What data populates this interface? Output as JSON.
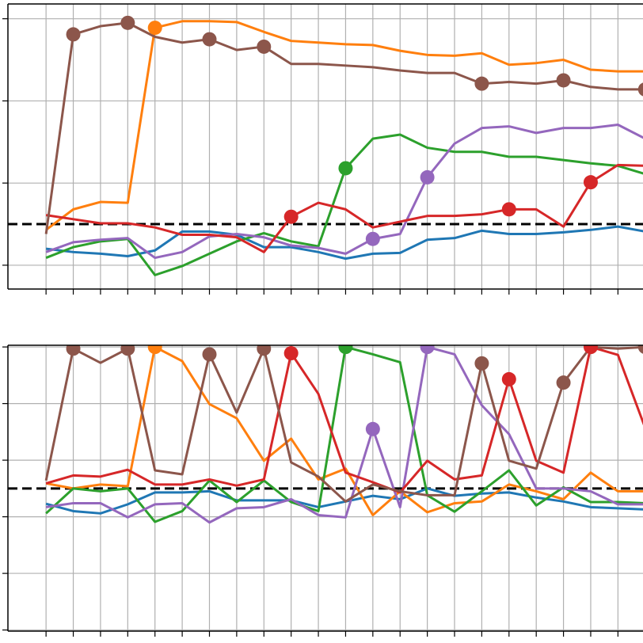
{
  "chart_data": [
    {
      "type": "line",
      "xlim": [
        -1.4,
        21.92
      ],
      "ylim": [
        -0.29,
        3.18
      ],
      "xticks": [
        0,
        1,
        2,
        3,
        4,
        5,
        6,
        7,
        8,
        9,
        10,
        11,
        12,
        13,
        14,
        15,
        16,
        17,
        18,
        19,
        20,
        21,
        22
      ],
      "yticks": [
        0,
        1,
        2,
        3
      ],
      "grid": true,
      "hline": 0.5,
      "x": [
        0,
        1,
        2,
        3,
        4,
        5,
        6,
        7,
        8,
        9,
        10,
        11,
        12,
        13,
        14,
        15,
        16,
        17,
        18,
        19,
        20,
        21,
        22
      ],
      "series": [
        {
          "color": "#1f77b4",
          "values": [
            0.2,
            0.16,
            0.14,
            0.11,
            0.18,
            0.41,
            0.41,
            0.37,
            0.22,
            0.22,
            0.16,
            0.08,
            0.14,
            0.15,
            0.31,
            0.33,
            0.42,
            0.38,
            0.38,
            0.4,
            0.43,
            0.47,
            0.41
          ],
          "markers": []
        },
        {
          "color": "#ff7f0e",
          "values": [
            0.43,
            0.68,
            0.77,
            0.76,
            2.89,
            2.97,
            2.97,
            2.96,
            2.84,
            2.73,
            2.71,
            2.69,
            2.68,
            2.61,
            2.56,
            2.55,
            2.58,
            2.44,
            2.46,
            2.5,
            2.38,
            2.36,
            2.36
          ],
          "markers": [
            4
          ]
        },
        {
          "color": "#2ca02c",
          "values": [
            0.09,
            0.22,
            0.29,
            0.32,
            -0.12,
            -0.01,
            0.14,
            0.29,
            0.39,
            0.29,
            0.23,
            1.18,
            1.54,
            1.59,
            1.43,
            1.38,
            1.38,
            1.32,
            1.32,
            1.28,
            1.24,
            1.21,
            1.11
          ],
          "markers": [
            11
          ]
        },
        {
          "color": "#9467bd",
          "values": [
            0.16,
            0.28,
            0.31,
            0.33,
            0.09,
            0.16,
            0.35,
            0.38,
            0.34,
            0.24,
            0.21,
            0.14,
            0.32,
            0.38,
            1.07,
            1.48,
            1.67,
            1.69,
            1.61,
            1.67,
            1.67,
            1.71,
            1.54
          ],
          "markers": [
            12,
            14
          ]
        },
        {
          "color": "#d62728",
          "values": [
            0.61,
            0.56,
            0.51,
            0.51,
            0.46,
            0.37,
            0.37,
            0.34,
            0.16,
            0.59,
            0.76,
            0.68,
            0.46,
            0.53,
            0.6,
            0.6,
            0.62,
            0.68,
            0.68,
            0.47,
            1.01,
            1.22,
            1.21
          ],
          "markers": [
            9,
            17,
            20
          ]
        },
        {
          "color": "#8c564b",
          "values": [
            0.38,
            2.81,
            2.91,
            2.95,
            2.78,
            2.71,
            2.75,
            2.62,
            2.66,
            2.45,
            2.45,
            2.43,
            2.41,
            2.37,
            2.34,
            2.34,
            2.21,
            2.23,
            2.21,
            2.25,
            2.17,
            2.14,
            2.14
          ],
          "markers": [
            1,
            3,
            6,
            8,
            16,
            19,
            22
          ]
        }
      ]
    },
    {
      "type": "line",
      "xlim": [
        -1.4,
        21.92
      ],
      "ylim": [
        -1.02,
        4.03
      ],
      "xticks": [
        0,
        1,
        2,
        3,
        4,
        5,
        6,
        7,
        8,
        9,
        10,
        11,
        12,
        13,
        14,
        15,
        16,
        17,
        18,
        19,
        20,
        21,
        22
      ],
      "yticks": [
        -1,
        0,
        1,
        2,
        3,
        4
      ],
      "grid": true,
      "hline": 1.5,
      "x": [
        0,
        1,
        2,
        3,
        4,
        5,
        6,
        7,
        8,
        9,
        10,
        11,
        12,
        13,
        14,
        15,
        16,
        17,
        18,
        19,
        20,
        21,
        22
      ],
      "series": [
        {
          "color": "#1f77b4",
          "values": [
            1.23,
            1.1,
            1.06,
            1.22,
            1.43,
            1.43,
            1.45,
            1.29,
            1.29,
            1.29,
            1.17,
            1.27,
            1.37,
            1.31,
            1.5,
            1.37,
            1.41,
            1.43,
            1.34,
            1.27,
            1.17,
            1.15,
            1.13
          ],
          "markers": []
        },
        {
          "color": "#ff7f0e",
          "values": [
            1.59,
            1.5,
            1.57,
            1.54,
            4.0,
            3.75,
            2.99,
            2.74,
            1.99,
            2.38,
            1.66,
            1.85,
            1.03,
            1.45,
            1.08,
            1.24,
            1.27,
            1.57,
            1.45,
            1.31,
            1.78,
            1.45,
            1.45
          ],
          "markers": [
            4
          ]
        },
        {
          "color": "#2ca02c",
          "values": [
            1.06,
            1.5,
            1.45,
            1.5,
            0.91,
            1.1,
            1.64,
            1.26,
            1.64,
            1.26,
            1.1,
            4.0,
            3.87,
            3.73,
            1.38,
            1.09,
            1.45,
            1.82,
            1.2,
            1.52,
            1.26,
            1.26,
            1.24
          ],
          "markers": [
            11
          ]
        },
        {
          "color": "#9467bd",
          "values": [
            1.17,
            1.24,
            1.24,
            0.99,
            1.22,
            1.24,
            0.9,
            1.15,
            1.17,
            1.31,
            1.03,
            0.99,
            2.55,
            1.17,
            4.0,
            3.87,
            2.97,
            2.46,
            1.5,
            1.5,
            1.45,
            1.22,
            1.22
          ],
          "markers": [
            12,
            14
          ]
        },
        {
          "color": "#d62728",
          "values": [
            1.59,
            1.73,
            1.71,
            1.83,
            1.57,
            1.57,
            1.66,
            1.55,
            1.66,
            3.89,
            3.17,
            1.78,
            1.61,
            1.43,
            1.99,
            1.66,
            1.73,
            3.43,
            1.99,
            1.78,
            4.0,
            3.86,
            2.57
          ],
          "markers": [
            9,
            17,
            20
          ]
        },
        {
          "color": "#8c564b",
          "values": [
            1.64,
            3.97,
            3.72,
            3.97,
            1.82,
            1.75,
            3.87,
            2.84,
            3.97,
            1.96,
            1.71,
            1.27,
            1.57,
            1.45,
            1.38,
            1.38,
            3.71,
            1.99,
            1.85,
            3.37,
            4.0,
            3.97,
            4.0
          ],
          "markers": [
            1,
            3,
            6,
            8,
            16,
            19,
            22
          ]
        }
      ]
    }
  ]
}
